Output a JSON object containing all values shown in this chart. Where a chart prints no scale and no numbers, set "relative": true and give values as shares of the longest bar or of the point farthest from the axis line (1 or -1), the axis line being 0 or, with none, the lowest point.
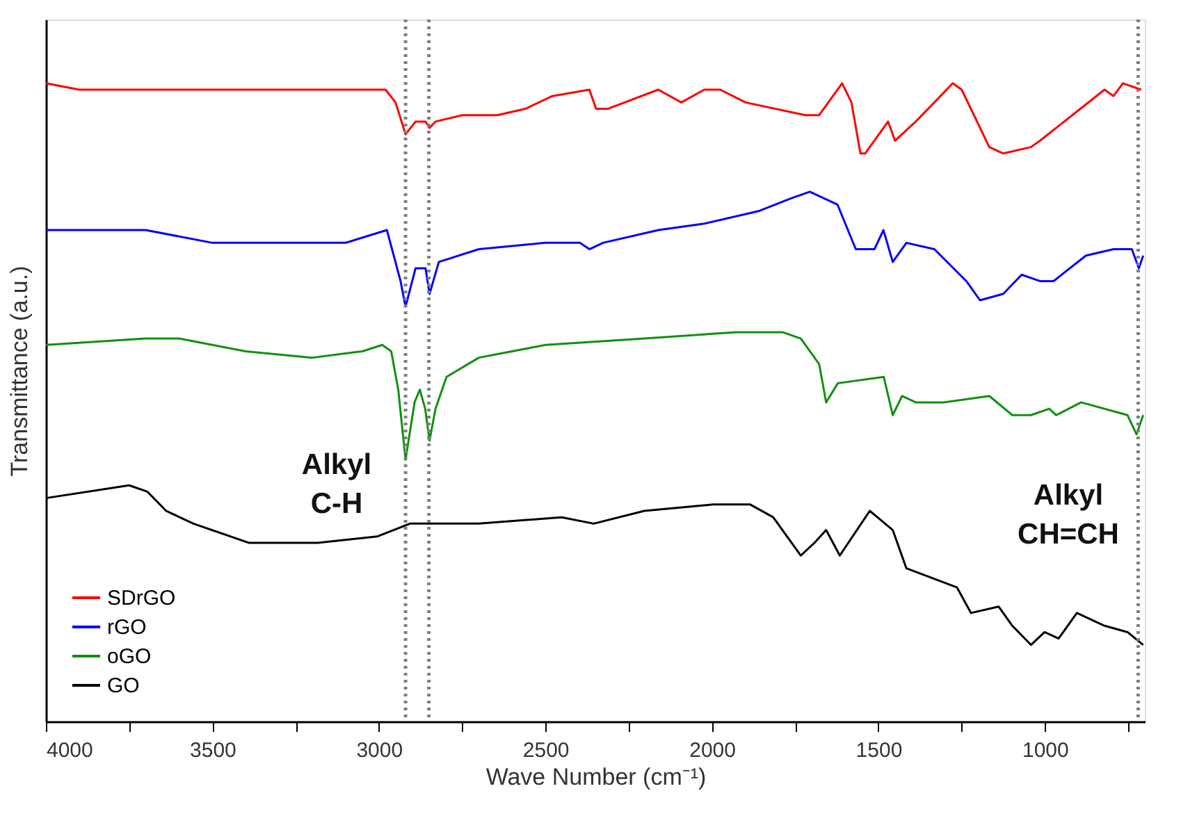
{
  "chart_data": {
    "type": "line",
    "relative": true,
    "xlabel": "Wave Number (cm⁻¹)",
    "ylabel": "Transmittance (a.u.)",
    "xlim": [
      4000,
      700
    ],
    "xticks": [
      4000,
      {
        "value": 3750,
        "label": null
      },
      3500,
      {
        "value": 3250,
        "label": null
      },
      3000,
      {
        "value": 2750,
        "label": null
      },
      2500,
      {
        "value": 2250,
        "label": null
      },
      2000,
      {
        "value": 1750,
        "label": null
      },
      1500,
      {
        "value": 1250,
        "label": null
      },
      1000,
      {
        "value": 750,
        "label": null
      }
    ],
    "legend": "bottom left",
    "tick_labels": "x",
    "line_style": "solid",
    "series": [
      {
        "name": "SDrGO",
        "color": "#ff0000",
        "x": [
          4000,
          3900,
          3700,
          3500,
          3300,
          3100,
          2980,
          2950,
          2920,
          2890,
          2860,
          2848,
          2830,
          2750,
          2645,
          2560,
          2479,
          2368,
          2348,
          2313,
          2161,
          2092,
          2023,
          1975,
          1899,
          1719,
          1678,
          1609,
          1581,
          1554,
          1540,
          1471,
          1450,
          1388,
          1332,
          1277,
          1250,
          1167,
          1125,
          1042,
          1015,
          918,
          821,
          794,
          766,
          711
        ],
        "values": [
          1.0,
          0.99,
          0.99,
          0.99,
          0.99,
          0.99,
          0.99,
          0.97,
          0.92,
          0.94,
          0.94,
          0.93,
          0.94,
          0.95,
          0.95,
          0.96,
          0.98,
          0.99,
          0.96,
          0.96,
          0.99,
          0.97,
          0.99,
          0.99,
          0.97,
          0.95,
          0.95,
          1.0,
          0.97,
          0.89,
          0.89,
          0.94,
          0.91,
          0.94,
          0.97,
          1.0,
          0.99,
          0.9,
          0.89,
          0.9,
          0.91,
          0.95,
          0.99,
          0.98,
          1.0,
          0.99
        ]
      },
      {
        "name": "rGO",
        "color": "#0000ff",
        "x": [
          4000,
          3800,
          3700,
          3500,
          3300,
          3100,
          2976,
          2935,
          2920,
          2890,
          2860,
          2848,
          2820,
          2700,
          2500,
          2396,
          2368,
          2327,
          2161,
          2023,
          1858,
          1761,
          1706,
          1623,
          1568,
          1512,
          1485,
          1457,
          1416,
          1332,
          1236,
          1195,
          1125,
          1070,
          1015,
          974,
          877,
          794,
          739,
          718,
          705
        ],
        "values": [
          0.77,
          0.77,
          0.77,
          0.75,
          0.75,
          0.75,
          0.77,
          0.69,
          0.65,
          0.71,
          0.71,
          0.67,
          0.72,
          0.74,
          0.75,
          0.75,
          0.74,
          0.75,
          0.77,
          0.78,
          0.8,
          0.82,
          0.83,
          0.81,
          0.74,
          0.74,
          0.77,
          0.72,
          0.75,
          0.74,
          0.69,
          0.66,
          0.67,
          0.7,
          0.69,
          0.69,
          0.73,
          0.74,
          0.74,
          0.71,
          0.73
        ]
      },
      {
        "name": "oGO",
        "color": "#109010",
        "x": [
          4000,
          3700,
          3600,
          3400,
          3200,
          3050,
          2990,
          2963,
          2942,
          2920,
          2893,
          2877,
          2861,
          2848,
          2830,
          2797,
          2700,
          2500,
          2203,
          1927,
          1788,
          1733,
          1678,
          1657,
          1622,
          1484,
          1457,
          1429,
          1388,
          1305,
          1167,
          1098,
          1042,
          987,
          966,
          891,
          752,
          725,
          705
        ],
        "values": [
          0.59,
          0.6,
          0.6,
          0.58,
          0.57,
          0.58,
          0.59,
          0.58,
          0.52,
          0.41,
          0.5,
          0.52,
          0.49,
          0.44,
          0.49,
          0.54,
          0.57,
          0.59,
          0.6,
          0.61,
          0.61,
          0.6,
          0.56,
          0.5,
          0.53,
          0.54,
          0.48,
          0.51,
          0.5,
          0.5,
          0.51,
          0.48,
          0.48,
          0.49,
          0.48,
          0.5,
          0.48,
          0.45,
          0.48
        ]
      },
      {
        "name": "GO",
        "color": "#000000",
        "x": [
          4000,
          3750,
          3695,
          3639,
          3557,
          3391,
          3184,
          3004,
          2907,
          2700,
          2451,
          2355,
          2203,
          1996,
          1885,
          1816,
          1733,
          1692,
          1657,
          1616,
          1526,
          1457,
          1416,
          1264,
          1222,
          1139,
          1098,
          1042,
          1001,
          959,
          904,
          821,
          752,
          705
        ],
        "values": [
          0.35,
          0.37,
          0.36,
          0.33,
          0.31,
          0.28,
          0.28,
          0.29,
          0.31,
          0.31,
          0.32,
          0.31,
          0.33,
          0.34,
          0.34,
          0.32,
          0.26,
          0.28,
          0.3,
          0.26,
          0.33,
          0.3,
          0.24,
          0.21,
          0.17,
          0.18,
          0.15,
          0.12,
          0.14,
          0.13,
          0.17,
          0.15,
          0.14,
          0.12
        ]
      }
    ],
    "ref_lines": [
      {
        "axis": "x",
        "value": 2920,
        "color": "#808080",
        "line_style": "dotted"
      },
      {
        "axis": "x",
        "value": 2850,
        "color": "#808080",
        "line_style": "dotted"
      },
      {
        "axis": "x",
        "value": 720,
        "color": "#808080",
        "line_style": "dotted"
      }
    ],
    "annotations": [
      "Alkyl C-H",
      "Alkyl CH=CH"
    ]
  }
}
